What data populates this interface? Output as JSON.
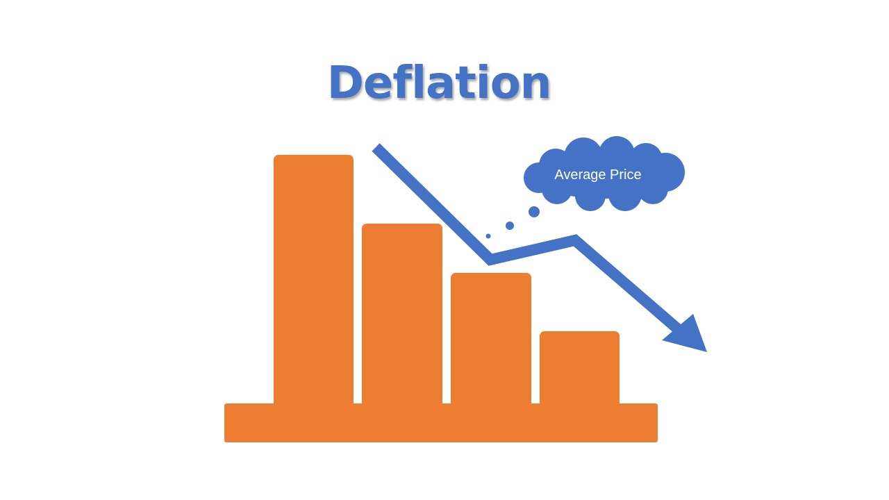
{
  "title": "Deflation",
  "cloud_label": "Average Price",
  "colors": {
    "title": "#4472C4",
    "bars": "#ED7D31",
    "arrow": "#4472C4",
    "cloud": "#4472C4",
    "cloud_text": "#ffffff"
  },
  "icons": [
    "trend-down-arrow-icon",
    "thought-cloud-icon"
  ]
}
